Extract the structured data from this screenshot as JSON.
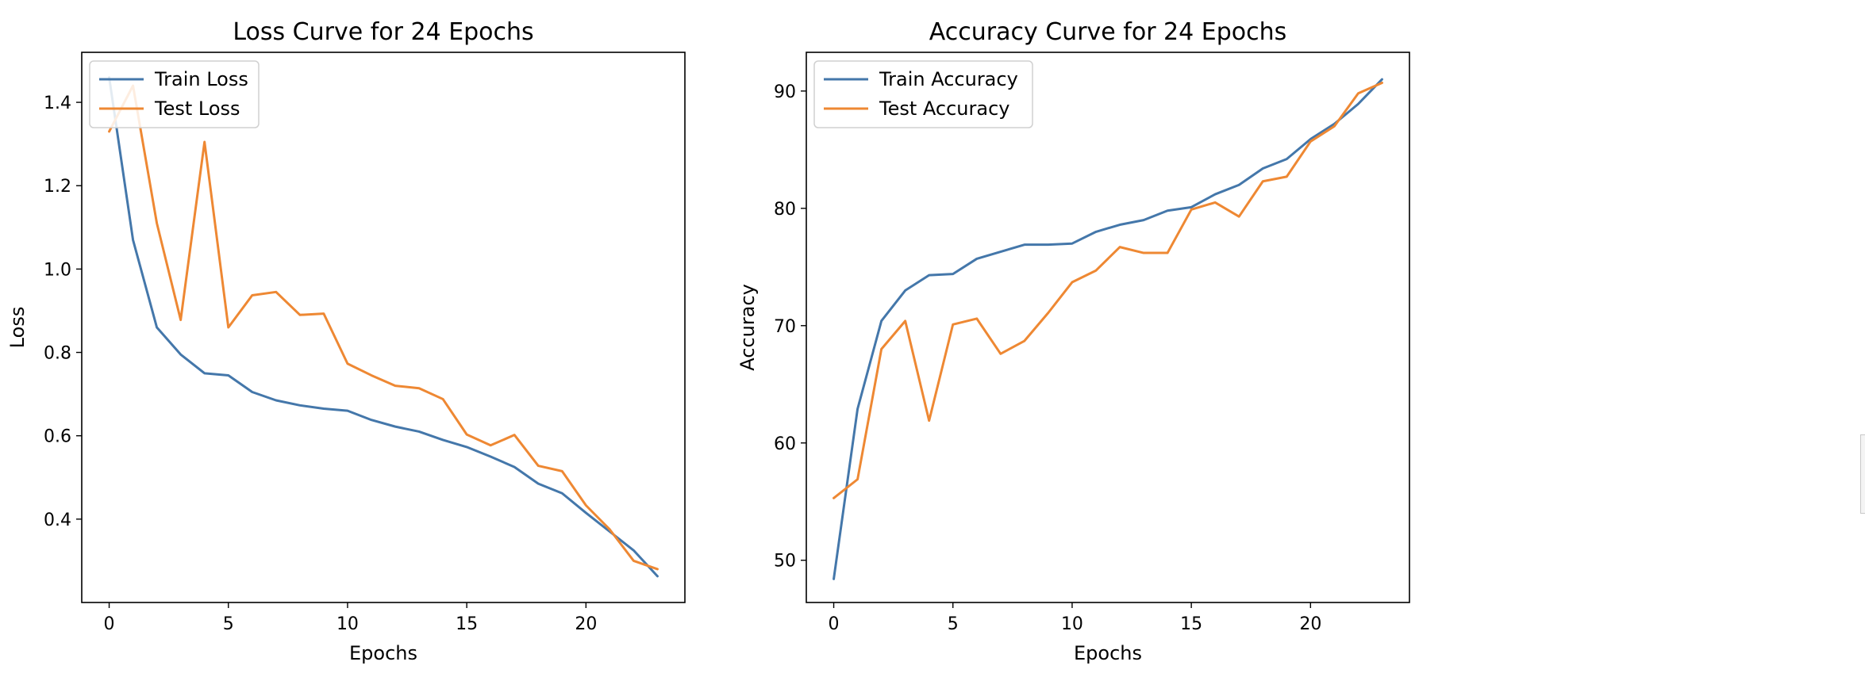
{
  "chart_data": [
    {
      "type": "line",
      "title": "Loss Curve for 24 Epochs",
      "xlabel": "Epochs",
      "ylabel": "Loss",
      "xlim": [
        -1.15,
        24.15
      ],
      "ylim": [
        0.2,
        1.52
      ],
      "xticks": [
        0,
        5,
        10,
        15,
        20
      ],
      "yticks": [
        0.4,
        0.6,
        0.8,
        1.0,
        1.2,
        1.4
      ],
      "ytick_decimals": 1,
      "legend_position": "upper-left",
      "grid": false,
      "x": [
        0,
        1,
        2,
        3,
        4,
        5,
        6,
        7,
        8,
        9,
        10,
        11,
        12,
        13,
        14,
        15,
        16,
        17,
        18,
        19,
        20,
        21,
        22,
        23
      ],
      "series": [
        {
          "name": "Train Loss",
          "color": "#4477aa",
          "values": [
            1.46,
            1.07,
            0.86,
            0.795,
            0.75,
            0.745,
            0.705,
            0.685,
            0.673,
            0.665,
            0.66,
            0.638,
            0.622,
            0.61,
            0.59,
            0.573,
            0.55,
            0.525,
            0.485,
            0.462,
            0.415,
            0.37,
            0.325,
            0.263
          ]
        },
        {
          "name": "Test Loss",
          "color": "#ee8833",
          "values": [
            1.33,
            1.44,
            1.11,
            0.878,
            1.305,
            0.86,
            0.937,
            0.945,
            0.89,
            0.893,
            0.773,
            0.745,
            0.72,
            0.714,
            0.688,
            0.603,
            0.577,
            0.602,
            0.528,
            0.515,
            0.433,
            0.375,
            0.3,
            0.28
          ]
        }
      ]
    },
    {
      "type": "line",
      "title": "Accuracy Curve for 24 Epochs",
      "xlabel": "Epochs",
      "ylabel": "Accuracy",
      "xlim": [
        -1.15,
        24.15
      ],
      "ylim": [
        46.4,
        93.3
      ],
      "xticks": [
        0,
        5,
        10,
        15,
        20
      ],
      "yticks": [
        50,
        60,
        70,
        80,
        90
      ],
      "ytick_decimals": 0,
      "legend_position": "upper-left",
      "grid": false,
      "x": [
        0,
        1,
        2,
        3,
        4,
        5,
        6,
        7,
        8,
        9,
        10,
        11,
        12,
        13,
        14,
        15,
        16,
        17,
        18,
        19,
        20,
        21,
        22,
        23
      ],
      "series": [
        {
          "name": "Train Accuracy",
          "color": "#4477aa",
          "values": [
            48.4,
            62.9,
            70.4,
            73.0,
            74.3,
            74.4,
            75.7,
            76.3,
            76.9,
            76.9,
            77.0,
            78.0,
            78.6,
            79.0,
            79.8,
            80.1,
            81.2,
            82.0,
            83.4,
            84.2,
            85.9,
            87.2,
            88.9,
            91.0
          ]
        },
        {
          "name": "Test Accuracy",
          "color": "#ee8833",
          "values": [
            55.3,
            56.9,
            68.0,
            70.4,
            61.9,
            70.1,
            70.6,
            67.6,
            68.7,
            71.1,
            73.7,
            74.7,
            76.7,
            76.2,
            76.2,
            79.9,
            80.5,
            79.3,
            82.3,
            82.7,
            85.7,
            87.0,
            89.8,
            90.7
          ]
        }
      ]
    }
  ]
}
